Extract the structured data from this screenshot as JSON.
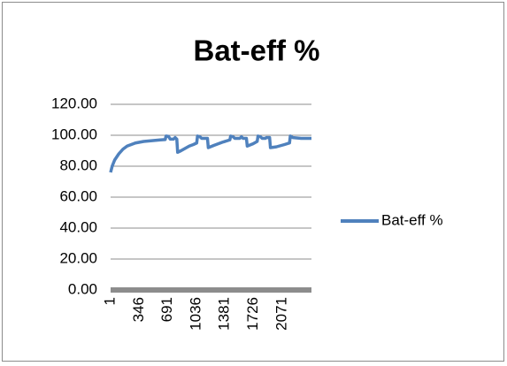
{
  "chart_data": {
    "type": "line",
    "title": "Bat-eff %",
    "x": [
      1,
      20,
      50,
      100,
      150,
      200,
      300,
      400,
      500,
      600,
      660,
      670,
      700,
      720,
      760,
      780,
      800,
      810,
      850,
      900,
      950,
      1000,
      1040,
      1050,
      1080,
      1100,
      1170,
      1180,
      1250,
      1350,
      1440,
      1450,
      1480,
      1500,
      1560,
      1580,
      1600,
      1640,
      1650,
      1720,
      1770,
      1780,
      1810,
      1830,
      1870,
      1880,
      1920,
      1930,
      2000,
      2100,
      2160,
      2170,
      2200,
      2300,
      2425
    ],
    "series": [
      {
        "name": "Bat-eff %",
        "color": "#4f81bd",
        "values": [
          76,
          80,
          84,
          88,
          91,
          93,
          95,
          96,
          96.5,
          97,
          97.2,
          99.5,
          99.3,
          97.5,
          97.5,
          98.5,
          97.5,
          89,
          90,
          91.5,
          93,
          94,
          95,
          99.5,
          99,
          98,
          98,
          92,
          93.5,
          95.5,
          97,
          99.5,
          99,
          98,
          98,
          99,
          98,
          98,
          93,
          94.5,
          96,
          99.5,
          99,
          98,
          98,
          98.5,
          98.5,
          92,
          92.5,
          94,
          95,
          99.5,
          98.5,
          98,
          98
        ]
      }
    ],
    "xlim": [
      1,
      2425
    ],
    "xticks": [
      1,
      346,
      691,
      1036,
      1381,
      1726,
      2071
    ],
    "ylim": [
      0,
      120
    ],
    "yticks": [
      {
        "value": 0,
        "label": "0.00"
      },
      {
        "value": 20,
        "label": "20.00"
      },
      {
        "value": 40,
        "label": "40.00"
      },
      {
        "value": 60,
        "label": "60.00"
      },
      {
        "value": 80,
        "label": "80.00"
      },
      {
        "value": 100,
        "label": "100.00"
      },
      {
        "value": 120,
        "label": "120.00"
      }
    ],
    "grid": true,
    "legend": "right"
  }
}
